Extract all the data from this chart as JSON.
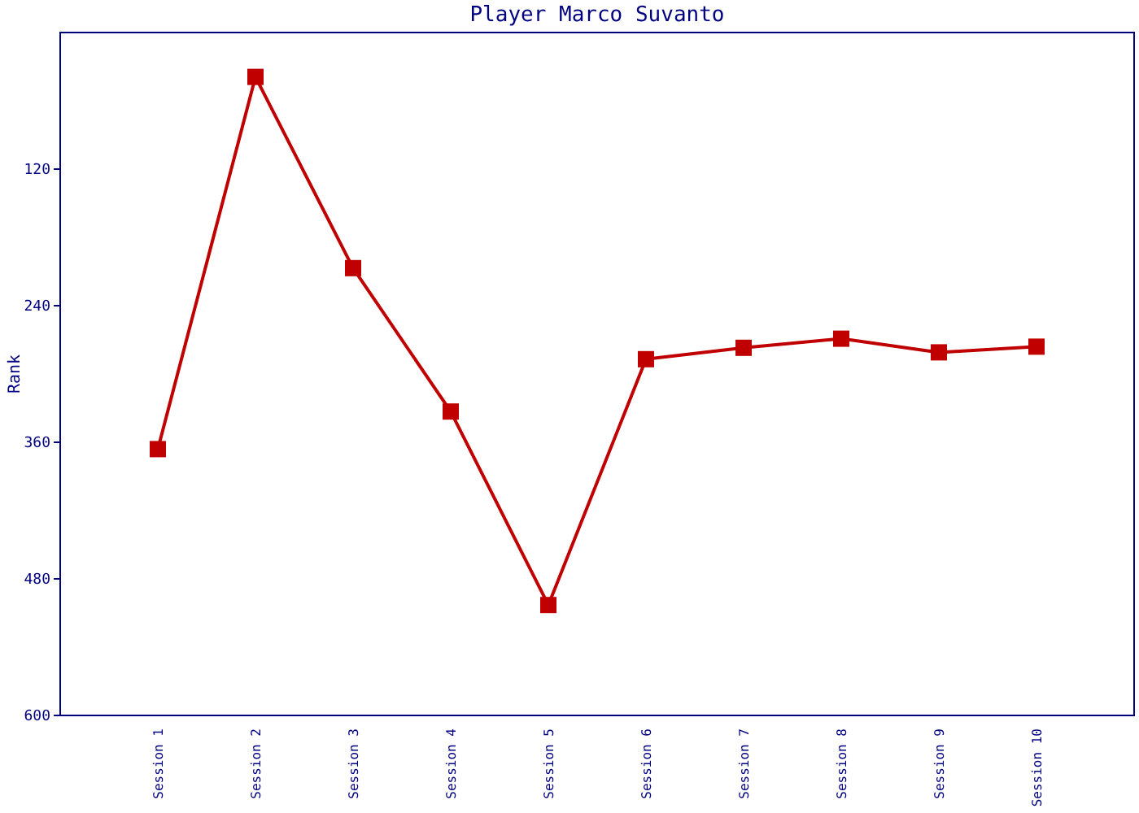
{
  "chart_data": {
    "type": "line",
    "title": "Player Marco Suvanto",
    "ylabel": "Rank",
    "categories": [
      "Session 1",
      "Session 2",
      "Session 3",
      "Session 4",
      "Session 5",
      "Session 6",
      "Session 7",
      "Session 8",
      "Session 9",
      "Session 10"
    ],
    "series": [
      {
        "color": "#c00000",
        "values": [
          366,
          39,
          207,
          333,
          503,
          287,
          277,
          269,
          281,
          276
        ]
      }
    ],
    "ylim": [
      600,
      0
    ],
    "yticks": [
      120,
      240,
      360,
      480,
      600
    ],
    "marker": "square",
    "line_style": "solid"
  }
}
